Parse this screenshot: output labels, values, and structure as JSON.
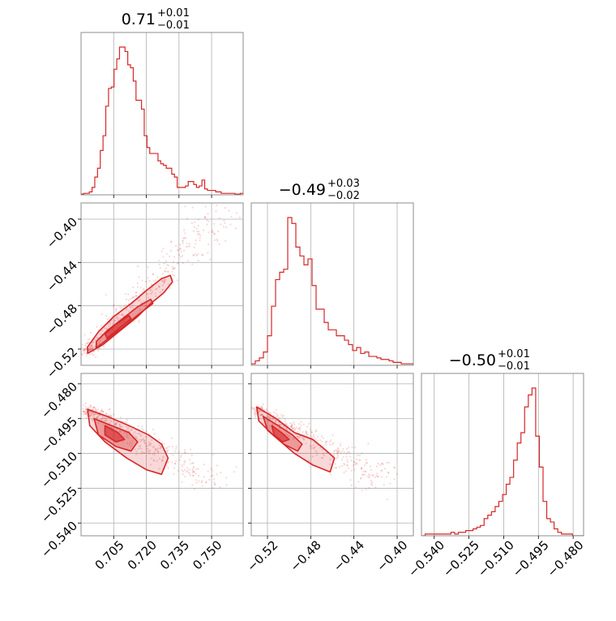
{
  "figure": {
    "type": "corner",
    "color": "#d62728",
    "contour_fill": "#d62728",
    "grid": true
  },
  "chart_data": [
    {
      "type": "histogram",
      "panel": "0-0",
      "title": {
        "value": "0.71",
        "plus": "+0.01",
        "minus": "−0.01"
      },
      "xlim": [
        0.69,
        0.7645
      ],
      "xticks": [
        0.705,
        0.72,
        0.735,
        0.75
      ],
      "xtick_labels": [
        "0.705",
        "0.720",
        "0.735",
        "0.750"
      ],
      "show_xtick_labels": false,
      "counts": [
        0.5,
        1,
        1,
        2,
        5,
        12,
        18,
        30,
        40,
        60,
        72,
        73,
        85,
        92,
        100,
        100,
        97,
        88,
        86,
        77,
        64,
        64,
        58,
        40,
        32,
        28,
        28,
        28,
        23,
        21,
        20,
        18,
        18,
        14,
        12,
        5,
        5,
        5,
        6,
        9,
        9,
        7,
        5,
        6,
        10,
        4,
        3,
        3,
        3,
        2,
        2,
        1,
        1,
        1,
        1,
        1,
        0.5,
        0.5,
        1
      ]
    },
    {
      "type": "contour",
      "panel": "1-0",
      "xlim": [
        0.69,
        0.7645
      ],
      "ylim": [
        -0.535,
        -0.385
      ],
      "xticks": [
        0.705,
        0.72,
        0.735,
        0.75
      ],
      "yticks": [
        -0.4,
        -0.44,
        -0.48,
        -0.52
      ],
      "ytick_labels": [
        "−0.40",
        "−0.44",
        "−0.48",
        "−0.52"
      ],
      "show_xtick_labels": false,
      "line": {
        "x": 0.693,
        "y": -0.522,
        "x2": 0.755,
        "y2": -0.392
      },
      "spread": 0.006,
      "levels": [
        [
          [
            0.693,
            -0.524
          ],
          [
            0.7,
            -0.516
          ],
          [
            0.708,
            -0.503
          ],
          [
            0.716,
            -0.49
          ],
          [
            0.722,
            -0.478
          ],
          [
            0.728,
            -0.468
          ],
          [
            0.732,
            -0.458
          ],
          [
            0.731,
            -0.452
          ],
          [
            0.727,
            -0.455
          ],
          [
            0.72,
            -0.466
          ],
          [
            0.713,
            -0.478
          ],
          [
            0.705,
            -0.49
          ],
          [
            0.698,
            -0.504
          ],
          [
            0.693,
            -0.518
          ]
        ],
        [
          [
            0.697,
            -0.519
          ],
          [
            0.704,
            -0.508
          ],
          [
            0.711,
            -0.497
          ],
          [
            0.717,
            -0.487
          ],
          [
            0.723,
            -0.478
          ],
          [
            0.722,
            -0.474
          ],
          [
            0.716,
            -0.481
          ],
          [
            0.709,
            -0.492
          ],
          [
            0.702,
            -0.503
          ],
          [
            0.697,
            -0.513
          ]
        ],
        [
          [
            0.702,
            -0.51
          ],
          [
            0.708,
            -0.5
          ],
          [
            0.713,
            -0.492
          ],
          [
            0.712,
            -0.489
          ],
          [
            0.706,
            -0.497
          ],
          [
            0.701,
            -0.506
          ]
        ]
      ]
    },
    {
      "type": "histogram",
      "panel": "1-1",
      "title": {
        "value": "−0.49",
        "plus": "+0.03",
        "minus": "−0.02"
      },
      "xlim": [
        -0.535,
        -0.385
      ],
      "xticks": [
        -0.52,
        -0.48,
        -0.44,
        -0.4
      ],
      "xtick_labels": [
        "−0.52",
        "−0.48",
        "−0.44",
        "−0.40"
      ],
      "show_xtick_labels": false,
      "counts": [
        1,
        3,
        5,
        9,
        20,
        40,
        58,
        63,
        65,
        100,
        96,
        80,
        74,
        68,
        72,
        54,
        38,
        38,
        29,
        24,
        24,
        20,
        20,
        17,
        14,
        10,
        12,
        8,
        9,
        6,
        6,
        5,
        4,
        4,
        3,
        2,
        2,
        1,
        1,
        1
      ]
    },
    {
      "type": "contour",
      "panel": "2-0",
      "xlim": [
        0.69,
        0.7645
      ],
      "ylim": [
        -0.5455,
        -0.4755
      ],
      "xticks": [
        0.705,
        0.72,
        0.735,
        0.75
      ],
      "xtick_labels": [
        "0.705",
        "0.720",
        "0.735",
        "0.750"
      ],
      "yticks": [
        -0.48,
        -0.495,
        -0.51,
        -0.525,
        -0.54
      ],
      "ytick_labels": [
        "−0.480",
        "−0.495",
        "−0.510",
        "−0.525",
        "−0.540"
      ],
      "line": {
        "x": 0.693,
        "y": -0.491,
        "x2": 0.75,
        "y2": -0.522
      },
      "spread": 0.006,
      "levels": [
        [
          [
            0.693,
            -0.491
          ],
          [
            0.702,
            -0.494
          ],
          [
            0.712,
            -0.498
          ],
          [
            0.721,
            -0.502
          ],
          [
            0.727,
            -0.506
          ],
          [
            0.73,
            -0.512
          ],
          [
            0.727,
            -0.519
          ],
          [
            0.72,
            -0.517
          ],
          [
            0.711,
            -0.512
          ],
          [
            0.701,
            -0.505
          ],
          [
            0.694,
            -0.498
          ]
        ],
        [
          [
            0.696,
            -0.495
          ],
          [
            0.704,
            -0.498
          ],
          [
            0.712,
            -0.501
          ],
          [
            0.716,
            -0.505
          ],
          [
            0.713,
            -0.509
          ],
          [
            0.706,
            -0.507
          ],
          [
            0.698,
            -0.502
          ]
        ],
        [
          [
            0.701,
            -0.498
          ],
          [
            0.707,
            -0.501
          ],
          [
            0.71,
            -0.504
          ],
          [
            0.706,
            -0.505
          ],
          [
            0.701,
            -0.502
          ]
        ]
      ]
    },
    {
      "type": "contour",
      "panel": "2-1",
      "xlim": [
        -0.535,
        -0.385
      ],
      "ylim": [
        -0.5455,
        -0.4755
      ],
      "xticks": [
        -0.52,
        -0.48,
        -0.44,
        -0.4
      ],
      "xtick_labels": [
        "−0.52",
        "−0.48",
        "−0.44",
        "−0.40"
      ],
      "yticks": [
        -0.48,
        -0.495,
        -0.51,
        -0.525,
        -0.54
      ],
      "show_ytick_labels": false,
      "line": {
        "x": -0.53,
        "y": -0.491,
        "x2": -0.41,
        "y2": -0.522
      },
      "spread": 0.01,
      "levels": [
        [
          [
            -0.53,
            -0.49
          ],
          [
            -0.512,
            -0.495
          ],
          [
            -0.495,
            -0.501
          ],
          [
            -0.478,
            -0.504
          ],
          [
            -0.465,
            -0.509
          ],
          [
            -0.458,
            -0.512
          ],
          [
            -0.462,
            -0.518
          ],
          [
            -0.478,
            -0.515
          ],
          [
            -0.495,
            -0.51
          ],
          [
            -0.515,
            -0.502
          ],
          [
            -0.528,
            -0.496
          ]
        ],
        [
          [
            -0.524,
            -0.494
          ],
          [
            -0.51,
            -0.498
          ],
          [
            -0.497,
            -0.502
          ],
          [
            -0.488,
            -0.506
          ],
          [
            -0.492,
            -0.509
          ],
          [
            -0.505,
            -0.506
          ],
          [
            -0.52,
            -0.5
          ]
        ],
        [
          [
            -0.516,
            -0.498
          ],
          [
            -0.507,
            -0.501
          ],
          [
            -0.5,
            -0.504
          ],
          [
            -0.506,
            -0.505
          ],
          [
            -0.514,
            -0.502
          ]
        ]
      ]
    },
    {
      "type": "histogram",
      "panel": "2-2",
      "title": {
        "value": "−0.50",
        "plus": "+0.01",
        "minus": "−0.01"
      },
      "xlim": [
        -0.5455,
        -0.4755
      ],
      "xticks": [
        -0.54,
        -0.525,
        -0.51,
        -0.495,
        -0.48
      ],
      "xtick_labels": [
        "−0.540",
        "−0.525",
        "−0.510",
        "−0.495",
        "−0.480"
      ],
      "counts": [
        0,
        1,
        1,
        1,
        1,
        1,
        1,
        1,
        2,
        1,
        2,
        2,
        3,
        3,
        4,
        5,
        6,
        10,
        12,
        14,
        17,
        20,
        24,
        30,
        34,
        44,
        54,
        60,
        75,
        82,
        86,
        58,
        40,
        20,
        10,
        8,
        4,
        2,
        1,
        1,
        1,
        0,
        0,
        0
      ]
    }
  ]
}
